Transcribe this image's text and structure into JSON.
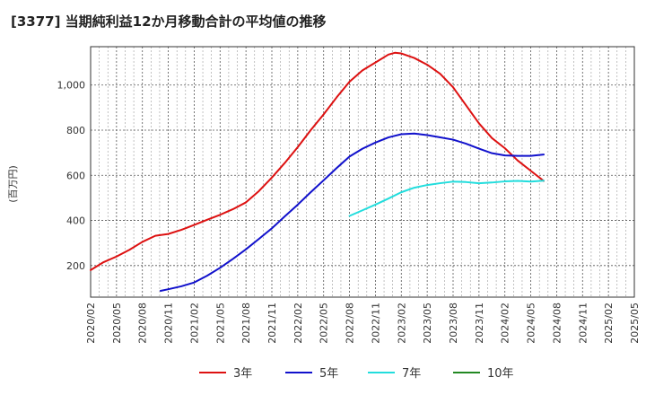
{
  "chart_data": {
    "type": "line",
    "title": "[3377]  当期純利益12か月移動合計の平均値の推移",
    "ylabel": "(百万円)",
    "xlabel": "",
    "ylim": [
      60,
      1170
    ],
    "yticks": [
      200,
      400,
      600,
      800,
      1000
    ],
    "ytick_labels": [
      "200",
      "400",
      "600",
      "800",
      "1,000"
    ],
    "x_categories": [
      "2020/02",
      "2020/05",
      "2020/08",
      "2020/11",
      "2021/02",
      "2021/05",
      "2021/08",
      "2021/11",
      "2022/02",
      "2022/05",
      "2022/08",
      "2022/11",
      "2023/02",
      "2023/05",
      "2023/08",
      "2023/11",
      "2024/02",
      "2024/05",
      "2024/08",
      "2024/11",
      "2025/02",
      "2025/05"
    ],
    "grid": true,
    "legend_position": "bottom",
    "series": [
      {
        "name": "3年",
        "color": "#dd1111",
        "points": [
          [
            0,
            180
          ],
          [
            0.5,
            215
          ],
          [
            1,
            240
          ],
          [
            1.5,
            270
          ],
          [
            2,
            305
          ],
          [
            2.5,
            332
          ],
          [
            3,
            340
          ],
          [
            3.5,
            358
          ],
          [
            4,
            380
          ],
          [
            4.5,
            403
          ],
          [
            5,
            425
          ],
          [
            5.5,
            450
          ],
          [
            6,
            480
          ],
          [
            6.5,
            530
          ],
          [
            7,
            590
          ],
          [
            7.5,
            655
          ],
          [
            8,
            725
          ],
          [
            8.5,
            800
          ],
          [
            9,
            870
          ],
          [
            9.5,
            945
          ],
          [
            10,
            1015
          ],
          [
            10.5,
            1065
          ],
          [
            11,
            1100
          ],
          [
            11.5,
            1135
          ],
          [
            11.75,
            1143
          ],
          [
            12,
            1140
          ],
          [
            12.5,
            1120
          ],
          [
            13,
            1090
          ],
          [
            13.5,
            1050
          ],
          [
            14,
            990
          ],
          [
            14.5,
            910
          ],
          [
            15,
            830
          ],
          [
            15.5,
            765
          ],
          [
            16,
            720
          ],
          [
            16.5,
            665
          ],
          [
            17,
            620
          ],
          [
            17.5,
            575
          ]
        ]
      },
      {
        "name": "5年",
        "color": "#1111cc",
        "points": [
          [
            2.7,
            88
          ],
          [
            3,
            95
          ],
          [
            3.5,
            108
          ],
          [
            4,
            125
          ],
          [
            4.5,
            155
          ],
          [
            5,
            190
          ],
          [
            5.5,
            230
          ],
          [
            6,
            272
          ],
          [
            6.5,
            318
          ],
          [
            7,
            365
          ],
          [
            7.5,
            418
          ],
          [
            8,
            470
          ],
          [
            8.5,
            525
          ],
          [
            9,
            578
          ],
          [
            9.5,
            632
          ],
          [
            10,
            683
          ],
          [
            10.5,
            718
          ],
          [
            11,
            745
          ],
          [
            11.5,
            768
          ],
          [
            12,
            782
          ],
          [
            12.5,
            785
          ],
          [
            13,
            778
          ],
          [
            13.5,
            768
          ],
          [
            14,
            758
          ],
          [
            14.5,
            740
          ],
          [
            15,
            718
          ],
          [
            15.5,
            698
          ],
          [
            16,
            688
          ],
          [
            16.5,
            686
          ],
          [
            17,
            686
          ],
          [
            17.5,
            692
          ]
        ]
      },
      {
        "name": "7年",
        "color": "#22dddd",
        "points": [
          [
            10,
            420
          ],
          [
            10.5,
            445
          ],
          [
            11,
            470
          ],
          [
            11.5,
            497
          ],
          [
            12,
            525
          ],
          [
            12.5,
            545
          ],
          [
            13,
            557
          ],
          [
            13.5,
            565
          ],
          [
            14,
            572
          ],
          [
            14.5,
            570
          ],
          [
            15,
            565
          ],
          [
            15.5,
            568
          ],
          [
            16,
            573
          ],
          [
            16.5,
            575
          ],
          [
            17,
            572
          ],
          [
            17.5,
            576
          ]
        ]
      },
      {
        "name": "10年",
        "color": "#228822",
        "points": []
      }
    ]
  }
}
